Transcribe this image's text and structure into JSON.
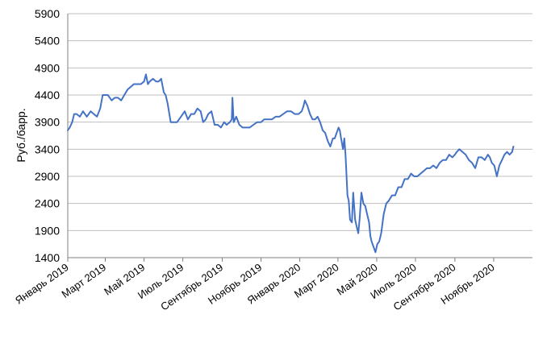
{
  "chart_data": {
    "type": "line",
    "title": "",
    "xlabel": "",
    "ylabel": "Руб./барр.",
    "ylim": [
      1400,
      5900
    ],
    "yticks": [
      1400,
      1900,
      2400,
      2900,
      3400,
      3900,
      4400,
      4900,
      5400,
      5900
    ],
    "xlim": [
      "2019-01-01",
      "2021-01-01"
    ],
    "grid": true,
    "legend": "none",
    "colors": {
      "line": "#4472C4",
      "grid": "#BFBFBF",
      "axis": "#808080"
    },
    "x_tick_labels": [
      {
        "date": "2019-01-01",
        "label": "Январь 2019"
      },
      {
        "date": "2019-03-01",
        "label": "Март 2019"
      },
      {
        "date": "2019-05-01",
        "label": "Май 2019"
      },
      {
        "date": "2019-07-01",
        "label": "Июль 2019"
      },
      {
        "date": "2019-09-01",
        "label": "Сентябрь 2019"
      },
      {
        "date": "2019-11-01",
        "label": "Ноябрь 2019"
      },
      {
        "date": "2020-01-01",
        "label": "Январь 2020"
      },
      {
        "date": "2020-03-01",
        "label": "Март 2020"
      },
      {
        "date": "2020-05-01",
        "label": "Май 2020"
      },
      {
        "date": "2020-07-01",
        "label": "Июль 2020"
      },
      {
        "date": "2020-09-01",
        "label": "Сентябрь 2020"
      },
      {
        "date": "2020-11-01",
        "label": "Ноябрь 2020"
      }
    ],
    "series": [
      {
        "x": [
          "2019-01-01",
          "2019-01-04",
          "2019-01-08",
          "2019-01-11",
          "2019-01-15",
          "2019-01-20",
          "2019-01-25",
          "2019-01-31",
          "2019-02-06",
          "2019-02-11",
          "2019-02-16",
          "2019-02-21",
          "2019-02-25",
          "2019-03-01",
          "2019-03-05",
          "2019-03-11",
          "2019-03-16",
          "2019-03-21",
          "2019-03-26",
          "2019-03-31",
          "2019-04-05",
          "2019-04-10",
          "2019-04-15",
          "2019-04-20",
          "2019-04-26",
          "2019-05-01",
          "2019-05-04",
          "2019-05-07",
          "2019-05-10",
          "2019-05-15",
          "2019-05-20",
          "2019-05-24",
          "2019-05-28",
          "2019-06-01",
          "2019-06-04",
          "2019-06-07",
          "2019-06-12",
          "2019-06-17",
          "2019-06-22",
          "2019-06-28",
          "2019-07-04",
          "2019-07-09",
          "2019-07-14",
          "2019-07-19",
          "2019-07-24",
          "2019-07-29",
          "2019-08-02",
          "2019-08-06",
          "2019-08-10",
          "2019-08-15",
          "2019-08-20",
          "2019-08-25",
          "2019-08-30",
          "2019-09-04",
          "2019-09-08",
          "2019-09-13",
          "2019-09-16",
          "2019-09-17",
          "2019-09-19",
          "2019-09-23",
          "2019-09-28",
          "2019-10-03",
          "2019-10-08",
          "2019-10-14",
          "2019-10-20",
          "2019-10-26",
          "2019-11-01",
          "2019-11-06",
          "2019-11-12",
          "2019-11-18",
          "2019-11-24",
          "2019-11-30",
          "2019-12-06",
          "2019-12-12",
          "2019-12-18",
          "2019-12-24",
          "2019-12-30",
          "2020-01-04",
          "2020-01-07",
          "2020-01-09",
          "2020-01-13",
          "2020-01-17",
          "2020-01-21",
          "2020-01-25",
          "2020-01-29",
          "2020-02-02",
          "2020-02-06",
          "2020-02-10",
          "2020-02-14",
          "2020-02-18",
          "2020-02-22",
          "2020-02-25",
          "2020-02-28",
          "2020-03-02",
          "2020-03-04",
          "2020-03-06",
          "2020-03-09",
          "2020-03-11",
          "2020-03-13",
          "2020-03-16",
          "2020-03-18",
          "2020-03-20",
          "2020-03-23",
          "2020-03-25",
          "2020-03-28",
          "2020-03-31",
          "2020-04-02",
          "2020-04-04",
          "2020-04-07",
          "2020-04-10",
          "2020-04-13",
          "2020-04-16",
          "2020-04-19",
          "2020-04-21",
          "2020-04-23",
          "2020-04-26",
          "2020-04-29",
          "2020-05-02",
          "2020-05-05",
          "2020-05-08",
          "2020-05-12",
          "2020-05-16",
          "2020-05-20",
          "2020-05-25",
          "2020-05-30",
          "2020-06-04",
          "2020-06-09",
          "2020-06-14",
          "2020-06-19",
          "2020-06-24",
          "2020-06-29",
          "2020-07-04",
          "2020-07-09",
          "2020-07-14",
          "2020-07-19",
          "2020-07-24",
          "2020-07-29",
          "2020-08-03",
          "2020-08-08",
          "2020-08-13",
          "2020-08-18",
          "2020-08-23",
          "2020-08-28",
          "2020-09-01",
          "2020-09-04",
          "2020-09-08",
          "2020-09-13",
          "2020-09-18",
          "2020-09-23",
          "2020-09-28",
          "2020-10-03",
          "2020-10-08",
          "2020-10-13",
          "2020-10-18",
          "2020-10-23",
          "2020-10-26",
          "2020-10-29",
          "2020-11-02",
          "2020-11-06",
          "2020-11-10",
          "2020-11-14",
          "2020-11-18",
          "2020-11-22",
          "2020-11-26",
          "2020-11-30",
          "2020-12-02"
        ],
        "values": [
          3750,
          3800,
          3900,
          4050,
          4050,
          4000,
          4100,
          4000,
          4100,
          4050,
          4000,
          4150,
          4400,
          4400,
          4400,
          4300,
          4350,
          4350,
          4300,
          4400,
          4500,
          4550,
          4600,
          4600,
          4600,
          4650,
          4780,
          4600,
          4650,
          4700,
          4650,
          4650,
          4700,
          4450,
          4400,
          4250,
          3900,
          3900,
          3900,
          4000,
          4100,
          3950,
          4050,
          4050,
          4150,
          4100,
          3900,
          3950,
          4050,
          4100,
          3850,
          3850,
          3800,
          3900,
          3850,
          3900,
          3950,
          4350,
          3900,
          4000,
          3850,
          3800,
          3800,
          3800,
          3850,
          3900,
          3900,
          3950,
          3950,
          3950,
          4000,
          4000,
          4050,
          4100,
          4100,
          4050,
          4050,
          4100,
          4200,
          4300,
          4200,
          4050,
          3950,
          3950,
          4000,
          3900,
          3750,
          3700,
          3550,
          3450,
          3600,
          3600,
          3700,
          3800,
          3750,
          3600,
          3400,
          3600,
          3300,
          2550,
          2450,
          2100,
          2050,
          2600,
          2100,
          1950,
          1850,
          2100,
          2600,
          2400,
          2350,
          2200,
          2050,
          1800,
          1700,
          1600,
          1500,
          1650,
          1700,
          1850,
          2200,
          2400,
          2450,
          2550,
          2550,
          2700,
          2700,
          2850,
          2850,
          2950,
          2900,
          2900,
          2950,
          3000,
          3050,
          3050,
          3100,
          3050,
          3150,
          3200,
          3200,
          3300,
          3250,
          3300,
          3350,
          3400,
          3350,
          3300,
          3200,
          3150,
          3050,
          3250,
          3250,
          3200,
          3300,
          3250,
          3150,
          3100,
          2900,
          3100,
          3200,
          3300,
          3350,
          3300,
          3350,
          3450
        ]
      }
    ]
  }
}
